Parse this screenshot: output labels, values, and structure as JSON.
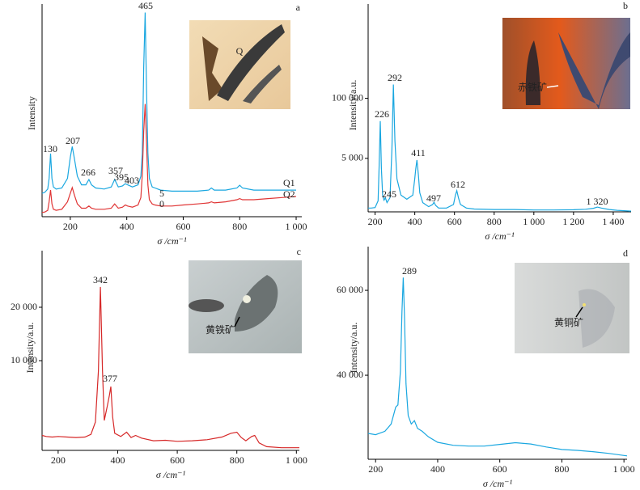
{
  "chart_data": [
    {
      "type": "line",
      "panel_label": "a",
      "ylabel": "Intensity",
      "xlabel": "σ /cm⁻¹",
      "xlim": [
        100,
        1020
      ],
      "ylim": [
        0,
        100
      ],
      "xticks": [
        200,
        400,
        600,
        800,
        {
          "value": 1000,
          "label": "1 000"
        }
      ],
      "x": [
        100,
        110,
        120,
        125,
        130,
        135,
        140,
        150,
        170,
        190,
        200,
        207,
        215,
        225,
        240,
        255,
        266,
        275,
        290,
        320,
        345,
        357,
        370,
        385,
        395,
        403,
        420,
        440,
        450,
        455,
        460,
        465,
        470,
        475,
        480,
        490,
        500,
        520,
        560,
        600,
        650,
        690,
        700,
        710,
        750,
        790,
        800,
        810,
        850,
        900,
        950,
        1000
      ],
      "series": [
        {
          "name": "Q1",
          "color": "#1aa7e0",
          "values": [
            11,
            11.5,
            13,
            18,
            29.7,
            18,
            14,
            13,
            13.5,
            18,
            28,
            33,
            27,
            19,
            15,
            15,
            17.5,
            15,
            13.5,
            13,
            14,
            17.5,
            14,
            14.5,
            15.5,
            15,
            14,
            15,
            19,
            30,
            70,
            96,
            60,
            30,
            18,
            14,
            13.5,
            12.5,
            12,
            12,
            12,
            12.5,
            13.5,
            12.5,
            12.5,
            13.5,
            14.8,
            13.5,
            12.5,
            12.5,
            12.5,
            12.5
          ]
        },
        {
          "name": "Q2",
          "color": "#e03535",
          "values": [
            2,
            2.2,
            3,
            7,
            12.5,
            6,
            3.5,
            3,
            3.5,
            7,
            11,
            13.7,
            10,
            6,
            4,
            4,
            5,
            4,
            3.5,
            3.5,
            4,
            6,
            4,
            4.5,
            5.5,
            5,
            4.5,
            5.5,
            9,
            20,
            40,
            53,
            35,
            15,
            8,
            6,
            5.5,
            5,
            5,
            5.5,
            6,
            6.5,
            7,
            6.5,
            7,
            8,
            8.5,
            8,
            8,
            8.5,
            9,
            9.5
          ]
        }
      ],
      "peak_labels": [
        "130",
        "207",
        "266",
        "357",
        "395",
        "403",
        "465",
        "5",
        "0"
      ],
      "inset_label": "Q"
    },
    {
      "type": "line",
      "panel_label": "b",
      "ylabel": "Intensity/a.u.",
      "xlabel": "σ /cm⁻¹",
      "xlim": [
        165,
        1490
      ],
      "ylim": [
        347,
        11000000
      ],
      "ylog": true,
      "xticks": [
        200,
        400,
        600,
        800,
        {
          "value": 1000,
          "label": "1 000"
        },
        {
          "value": 1200,
          "label": "1 200"
        },
        {
          "value": 1400,
          "label": "1 400"
        }
      ],
      "yticks": [
        {
          "value": 5000,
          "label": "5 000"
        },
        {
          "value": 100000,
          "label": "100 000"
        }
      ],
      "x": [
        165,
        180,
        200,
        215,
        220,
        226,
        232,
        238,
        245,
        252,
        260,
        275,
        285,
        292,
        300,
        310,
        330,
        360,
        390,
        400,
        405,
        411,
        418,
        425,
        440,
        470,
        490,
        497,
        505,
        520,
        560,
        595,
        605,
        612,
        620,
        630,
        660,
        700,
        800,
        900,
        1000,
        1100,
        1200,
        1260,
        1300,
        1320,
        1340,
        1380,
        1420,
        1490
      ],
      "series": [
        {
          "color": "#1aa7e0",
          "values": [
            420,
            420,
            430,
            600,
            3000,
            32000,
            3000,
            800,
            620,
            700,
            550,
            700,
            8000,
            199000,
            12000,
            1800,
            800,
            650,
            800,
            1800,
            3000,
            4600,
            2200,
            900,
            550,
            450,
            500,
            560,
            480,
            420,
            420,
            500,
            800,
            1000,
            700,
            500,
            420,
            400,
            390,
            390,
            380,
            380,
            385,
            395,
            415,
            440,
            420,
            390,
            375,
            360
          ]
        }
      ],
      "peak_labels": [
        "226",
        "245",
        "292",
        "411",
        "497",
        "612",
        "1 320"
      ],
      "inset_label": "赤铁矿"
    },
    {
      "type": "line",
      "panel_label": "c",
      "ylabel": "Intensity/a.u.",
      "xlabel": "σ /cm⁻¹",
      "xlim": [
        146,
        1010
      ],
      "ylim": [
        -6800,
        30600
      ],
      "xticks": [
        200,
        400,
        600,
        800,
        {
          "value": 1000,
          "label": "1 000"
        }
      ],
      "yticks": [
        {
          "value": 10000,
          "label": "10 000"
        },
        {
          "value": 20000,
          "label": "20 000"
        }
      ],
      "x": [
        146,
        160,
        180,
        200,
        230,
        260,
        290,
        310,
        325,
        335,
        342,
        349,
        355,
        365,
        372,
        377,
        383,
        390,
        410,
        430,
        445,
        460,
        480,
        520,
        560,
        600,
        650,
        700,
        750,
        780,
        800,
        815,
        830,
        850,
        860,
        875,
        900,
        950,
        1010
      ],
      "series": [
        {
          "color": "#d62828",
          "values": [
            -4000,
            -4200,
            -4300,
            -4200,
            -4300,
            -4400,
            -4300,
            -3800,
            -1500,
            8000,
            23800,
            8000,
            -1200,
            1500,
            3500,
            5150,
            -500,
            -3600,
            -4200,
            -3400,
            -4400,
            -4000,
            -4500,
            -5000,
            -4900,
            -5100,
            -5000,
            -4800,
            -4300,
            -3600,
            -3400,
            -4400,
            -5000,
            -4200,
            -4000,
            -5400,
            -6100,
            -6300,
            -6300
          ]
        }
      ],
      "peak_labels": [
        "342",
        "377"
      ],
      "inset_label": "黄铁矿"
    },
    {
      "type": "line",
      "panel_label": "d",
      "ylabel": "Intensity/a.u.",
      "xlabel": "σ /cm⁻¹",
      "xlim": [
        176,
        1010
      ],
      "ylim": [
        20200,
        70300
      ],
      "xticks": [
        200,
        400,
        600,
        800,
        {
          "value": 1000,
          "label": "1 000"
        }
      ],
      "yticks": [
        {
          "value": 40000,
          "label": "40 000"
        },
        {
          "value": 60000,
          "label": "60 000"
        }
      ],
      "x": [
        176,
        200,
        230,
        250,
        265,
        272,
        280,
        285,
        289,
        293,
        298,
        305,
        315,
        325,
        335,
        350,
        370,
        400,
        450,
        500,
        550,
        600,
        650,
        700,
        750,
        800,
        850,
        900,
        950,
        1010
      ],
      "series": [
        {
          "color": "#1aa7e0",
          "values": [
            26300,
            26000,
            26800,
            28500,
            32500,
            33000,
            41000,
            55000,
            63000,
            54000,
            38000,
            30500,
            28500,
            29300,
            27500,
            26800,
            25500,
            24200,
            23500,
            23300,
            23300,
            23700,
            24100,
            23800,
            23100,
            22500,
            22300,
            22000,
            21600,
            21000
          ]
        }
      ],
      "peak_labels": [
        "289"
      ],
      "inset_label": "黄铜矿"
    }
  ]
}
